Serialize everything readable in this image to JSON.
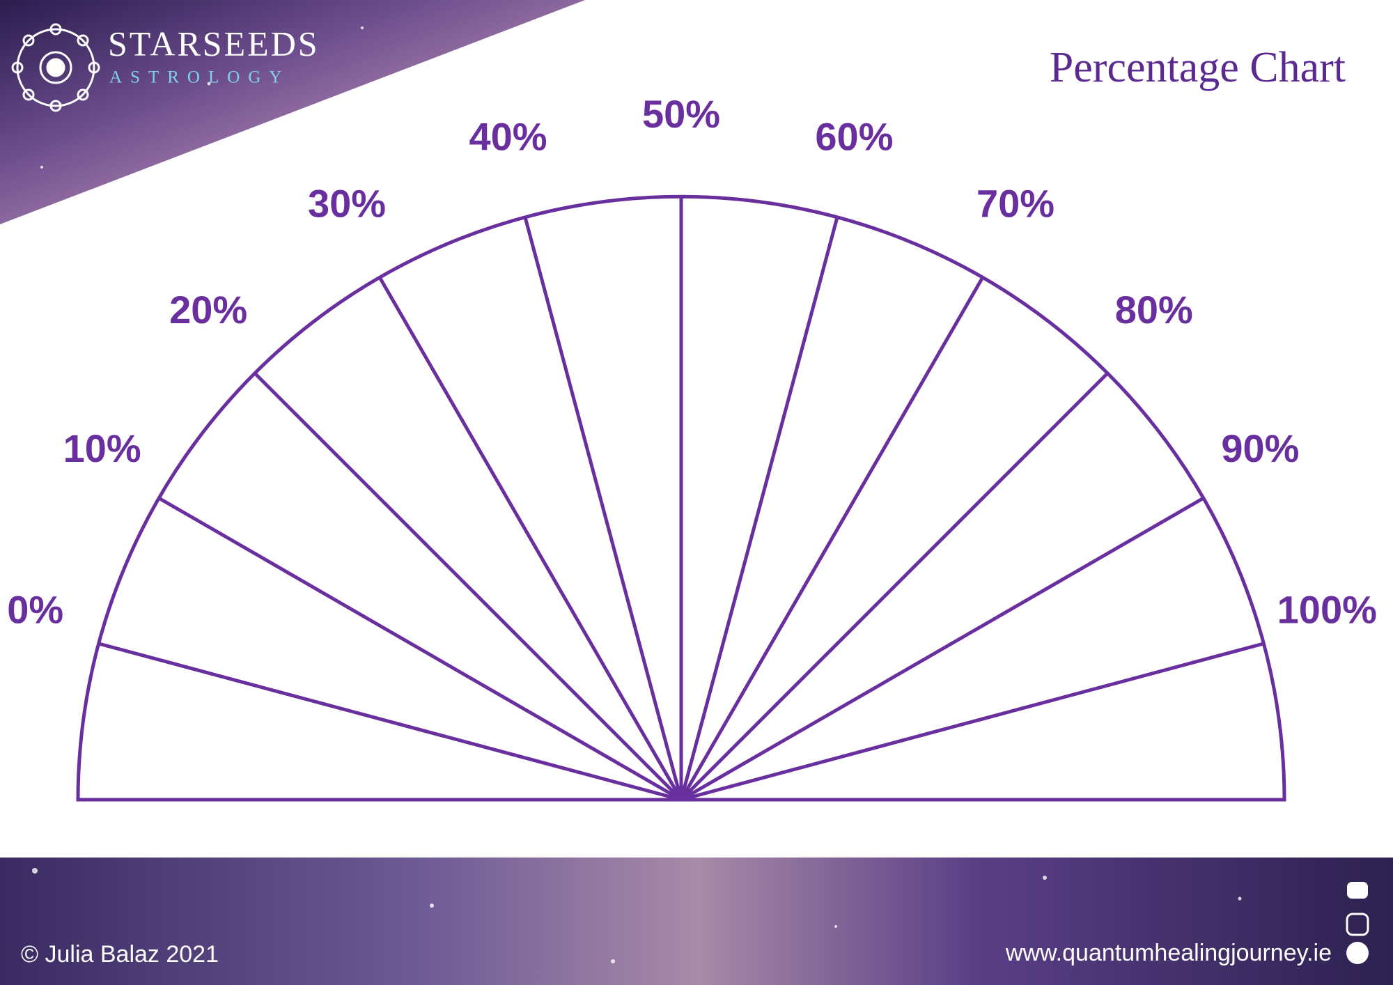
{
  "header": {
    "brand": "STARSEEDS",
    "brand_sub": "ASTROLOGY",
    "title": "Percentage Chart"
  },
  "dial": {
    "labels": [
      "0%",
      "10%",
      "20%",
      "30%",
      "40%",
      "50%",
      "60%",
      "70%",
      "80%",
      "90%",
      "100%"
    ]
  },
  "footer": {
    "copyright": "© Julia Balaz 2021",
    "website": "www.quantumhealingjourney.ie"
  }
}
